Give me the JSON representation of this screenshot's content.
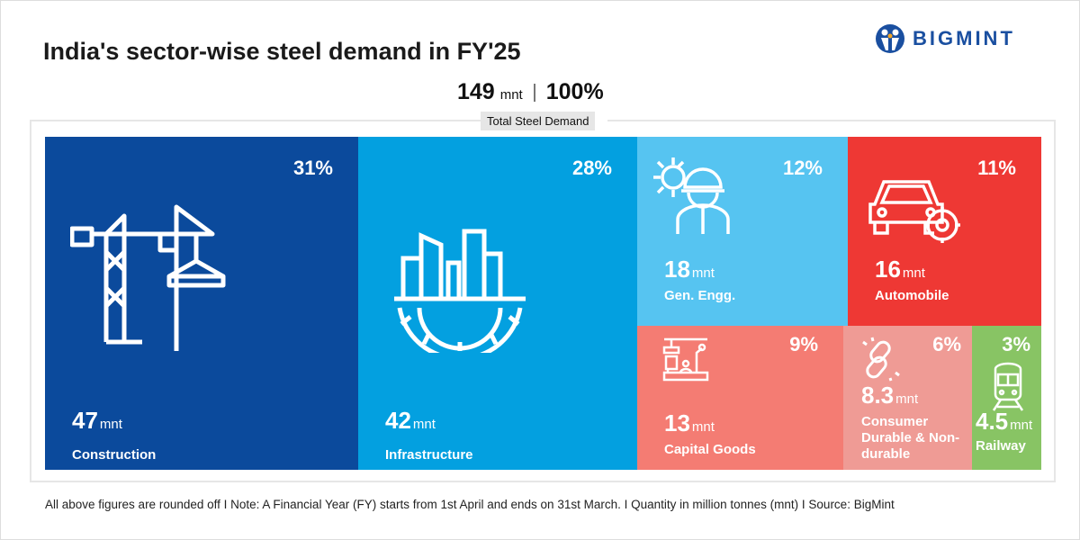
{
  "header": {
    "title": "India's sector-wise steel demand in FY'25",
    "logo_text": "BIGMINT"
  },
  "total": {
    "value": "149",
    "unit": "mnt",
    "percent": "100%",
    "label": "Total Steel Demand"
  },
  "chart_data": {
    "type": "treemap",
    "title": "India's sector-wise steel demand in FY'25",
    "unit": "mnt",
    "categories": [
      "Construction",
      "Infrastructure",
      "Gen. Engg.",
      "Automobile",
      "Capital Goods",
      "Consumer Durable & Non-durable",
      "Railway"
    ],
    "values": [
      47,
      42,
      18,
      16,
      13,
      8.3,
      4.5
    ],
    "percents": [
      "31%",
      "28%",
      "12%",
      "11%",
      "9%",
      "6%",
      "3%"
    ],
    "tiles": [
      {
        "label": "Construction",
        "value": "47",
        "unit": "mnt",
        "pct": "31%",
        "color": "#0b4a9c",
        "icon": "crane-icon"
      },
      {
        "label": "Infrastructure",
        "value": "42",
        "unit": "mnt",
        "pct": "28%",
        "color": "#03a0e0",
        "icon": "buildings-gear-icon"
      },
      {
        "label": "Gen. Engg.",
        "value": "18",
        "unit": "mnt",
        "pct": "12%",
        "color": "#56c4f1",
        "icon": "engineer-gear-icon"
      },
      {
        "label": "Automobile",
        "value": "16",
        "unit": "mnt",
        "pct": "11%",
        "color": "#ee3834",
        "icon": "car-gear-icon"
      },
      {
        "label": "Capital Goods",
        "value": "13",
        "unit": "mnt",
        "pct": "9%",
        "color": "#f47c73",
        "icon": "factory-machine-icon"
      },
      {
        "label": "Consumer Durable & Non-durable",
        "value": "8.3",
        "unit": "mnt",
        "pct": "6%",
        "color": "#ef9b95",
        "icon": "chain-link-icon"
      },
      {
        "label": "Railway",
        "value": "4.5",
        "unit": "mnt",
        "pct": "3%",
        "color": "#88c464",
        "icon": "train-icon"
      }
    ]
  },
  "footer": "All above figures are rounded off  I  Note: A Financial Year (FY) starts from 1st April and ends on 31st March.  I  Quantity in million tonnes (mnt)  I  Source: BigMint"
}
